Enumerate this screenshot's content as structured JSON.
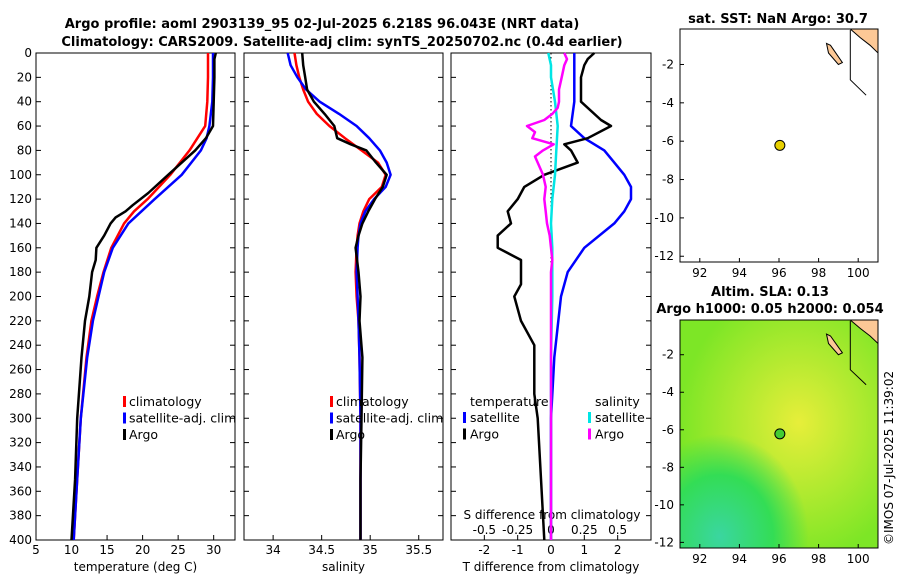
{
  "header": {
    "title_line1": "Argo profile: aoml  2903139_95  02-Jul-2025 6.218S 96.043E (NRT data)",
    "title_line2": "Climatology: CARS2009. Satellite-adj clim: synTS_20250702.nc (0.4d earlier)"
  },
  "footer": {
    "watermark": "©IMOS 07-Jul-2025 11:39:02"
  },
  "colors": {
    "climatology": "#ff0000",
    "satellite": "#0000ff",
    "argo": "#000000",
    "salinity_sat": "#00e5e5",
    "salinity_argo": "#ff00ff",
    "land": "#fcc896",
    "float_marker": "#e8d000",
    "float_marker2": "#44cc33"
  },
  "legends": {
    "temp": [
      "climatology",
      "satellite-adj. clim",
      "Argo"
    ],
    "sal": [
      "climatology",
      "satellite-adj. clim",
      "Argo"
    ],
    "diff_left_title": "temperature",
    "diff_right_title": "salinity",
    "diff_left": [
      "satellite",
      "Argo"
    ],
    "diff_right": [
      "satellite",
      "Argo"
    ]
  },
  "maps": {
    "sst_title": "sat. SST: NaN Argo: 30.7",
    "sla_title_line1": "Altim. SLA: 0.13",
    "sla_title_line2": "Argo h1000: 0.05 h2000: 0.054",
    "lon_ticks": [
      "92",
      "94",
      "96",
      "98",
      "100"
    ],
    "lat_ticks": [
      "-2",
      "-4",
      "-6",
      "-8",
      "-10",
      "-12"
    ],
    "float_lon": 96.043,
    "float_lat": -6.218
  },
  "chart_data": [
    {
      "type": "line",
      "name": "temperature",
      "xlabel": "temperature (deg C)",
      "ylabel": "",
      "xlim": [
        5,
        33
      ],
      "ylim": [
        400,
        0
      ],
      "xticks": [
        "5",
        "10",
        "15",
        "20",
        "25",
        "30"
      ],
      "yticks": [
        "0",
        "20",
        "40",
        "60",
        "80",
        "100",
        "120",
        "140",
        "160",
        "180",
        "200",
        "220",
        "240",
        "260",
        "280",
        "300",
        "320",
        "340",
        "360",
        "380",
        "400"
      ],
      "series": [
        {
          "name": "climatology",
          "depth": [
            0,
            20,
            40,
            60,
            80,
            100,
            120,
            130,
            140,
            160,
            180,
            200,
            220,
            250,
            300,
            350,
            400
          ],
          "values": [
            29.2,
            29.2,
            29.1,
            28.8,
            26.6,
            23.9,
            20.7,
            18.8,
            17.4,
            15.6,
            14.5,
            13.6,
            12.8,
            12.1,
            11.3,
            10.8,
            10.3
          ]
        },
        {
          "name": "satellite-adj. clim",
          "depth": [
            0,
            20,
            40,
            60,
            70,
            80,
            100,
            120,
            140,
            160,
            180,
            200,
            220,
            250,
            300,
            350,
            400
          ],
          "values": [
            29.9,
            29.9,
            29.8,
            29.4,
            29.0,
            28.2,
            25.5,
            21.7,
            18.0,
            15.8,
            14.6,
            13.8,
            13.0,
            12.2,
            11.3,
            10.8,
            10.3
          ]
        },
        {
          "name": "Argo",
          "depth": [
            0,
            5,
            20,
            40,
            60,
            70,
            80,
            100,
            115,
            125,
            130,
            135,
            140,
            150,
            160,
            170,
            180,
            200,
            220,
            250,
            300,
            350,
            400
          ],
          "values": [
            30.3,
            30.1,
            30.1,
            30.0,
            29.9,
            28.9,
            27.4,
            23.6,
            20.8,
            18.6,
            17.6,
            16.2,
            15.5,
            14.6,
            13.5,
            13.4,
            12.9,
            12.5,
            11.9,
            11.4,
            10.8,
            10.5,
            10.0
          ]
        }
      ]
    },
    {
      "type": "line",
      "name": "salinity",
      "xlabel": "salinity",
      "ylabel": "",
      "xlim": [
        33.7,
        35.75
      ],
      "ylim": [
        400,
        0
      ],
      "xticks": [
        "34",
        "34.5",
        "35",
        "35.5"
      ],
      "series": [
        {
          "name": "climatology",
          "depth": [
            0,
            10,
            20,
            30,
            40,
            50,
            60,
            70,
            80,
            90,
            100,
            110,
            120,
            130,
            140,
            150,
            160,
            180,
            200,
            220,
            250,
            300,
            350,
            400
          ],
          "values": [
            34.22,
            34.24,
            34.27,
            34.31,
            34.36,
            34.45,
            34.58,
            34.74,
            34.91,
            35.08,
            35.16,
            35.12,
            34.99,
            34.93,
            34.89,
            34.87,
            34.86,
            34.85,
            34.86,
            34.88,
            34.89,
            34.9,
            34.9,
            34.9
          ]
        },
        {
          "name": "satellite-adj. clim",
          "depth": [
            0,
            10,
            20,
            30,
            40,
            50,
            60,
            70,
            80,
            90,
            100,
            110,
            120,
            130,
            140,
            150,
            160,
            180,
            200,
            220,
            250,
            300,
            350,
            400
          ],
          "values": [
            34.15,
            34.18,
            34.25,
            34.34,
            34.48,
            34.68,
            34.86,
            34.99,
            35.1,
            35.17,
            35.21,
            35.16,
            35.04,
            34.95,
            34.9,
            34.88,
            34.87,
            34.86,
            34.87,
            34.88,
            34.89,
            34.9,
            34.9,
            34.9
          ]
        },
        {
          "name": "Argo",
          "depth": [
            0,
            10,
            20,
            30,
            40,
            50,
            60,
            70,
            75,
            80,
            90,
            100,
            110,
            120,
            130,
            140,
            150,
            160,
            180,
            200,
            220,
            250,
            300,
            350,
            400
          ],
          "values": [
            34.3,
            34.31,
            34.33,
            34.35,
            34.42,
            34.53,
            34.63,
            34.66,
            34.8,
            34.96,
            35.06,
            35.17,
            35.13,
            35.05,
            34.98,
            34.92,
            34.88,
            34.85,
            34.88,
            34.9,
            34.89,
            34.92,
            34.91,
            34.9,
            34.9
          ]
        }
      ]
    },
    {
      "type": "line",
      "name": "differences",
      "xlabel": "T difference from climatology",
      "x2label": "S difference from climatology",
      "xlim": [
        -3,
        3
      ],
      "ylim": [
        400,
        0
      ],
      "xticks": [
        "-2",
        "-1",
        "0",
        "1",
        "2"
      ],
      "x2lim": [
        -0.75,
        0.75
      ],
      "x2ticks": [
        "-0.5",
        "-0.25",
        "0",
        "0.25",
        "0.5"
      ],
      "series": [
        {
          "name": "temperature satellite",
          "axis": "T",
          "depth": [
            0,
            20,
            40,
            60,
            70,
            80,
            90,
            100,
            110,
            120,
            130,
            140,
            160,
            180,
            200,
            250,
            300,
            350,
            400
          ],
          "values": [
            0.7,
            0.7,
            0.7,
            0.6,
            1.0,
            1.6,
            1.9,
            2.2,
            2.4,
            2.4,
            2.2,
            1.9,
            1.0,
            0.5,
            0.3,
            0.1,
            0.0,
            0.0,
            0.0
          ]
        },
        {
          "name": "temperature Argo",
          "axis": "T",
          "depth": [
            0,
            5,
            10,
            20,
            40,
            55,
            60,
            70,
            75,
            80,
            90,
            100,
            110,
            120,
            130,
            140,
            150,
            160,
            170,
            180,
            190,
            200,
            220,
            240,
            260,
            280,
            300,
            350,
            400
          ],
          "values": [
            1.3,
            1.1,
            1.0,
            0.9,
            0.9,
            1.5,
            1.8,
            1.1,
            0.4,
            0.6,
            0.8,
            -0.2,
            -0.8,
            -1.0,
            -1.3,
            -1.2,
            -1.6,
            -1.6,
            -0.9,
            -0.9,
            -0.9,
            -1.1,
            -0.9,
            -0.5,
            -0.5,
            -0.5,
            -0.4,
            -0.3,
            -0.2
          ]
        },
        {
          "name": "salinity satellite",
          "axis": "S",
          "depth": [
            0,
            10,
            20,
            40,
            60,
            80,
            100,
            120,
            140,
            160,
            180,
            200,
            250,
            300,
            350,
            400
          ],
          "values": [
            -0.02,
            0.0,
            0.0,
            0.03,
            0.05,
            0.04,
            0.03,
            0.01,
            0.0,
            0.01,
            0.01,
            0.01,
            0.0,
            0.0,
            0.0,
            0.0
          ]
        },
        {
          "name": "salinity Argo",
          "axis": "S",
          "depth": [
            0,
            5,
            10,
            20,
            30,
            40,
            45,
            50,
            55,
            60,
            65,
            70,
            75,
            80,
            85,
            90,
            100,
            110,
            120,
            130,
            140,
            150,
            160,
            170,
            180,
            200,
            250,
            300,
            350,
            400
          ],
          "values": [
            0.1,
            0.12,
            0.1,
            0.08,
            0.06,
            0.06,
            0.05,
            0.01,
            -0.05,
            -0.18,
            -0.12,
            -0.14,
            0.02,
            -0.06,
            -0.12,
            -0.1,
            -0.06,
            -0.04,
            -0.05,
            -0.04,
            -0.03,
            -0.01,
            0.0,
            0.01,
            0.0,
            0.0,
            0.0,
            0.0,
            0.0,
            0.0
          ]
        }
      ]
    }
  ]
}
